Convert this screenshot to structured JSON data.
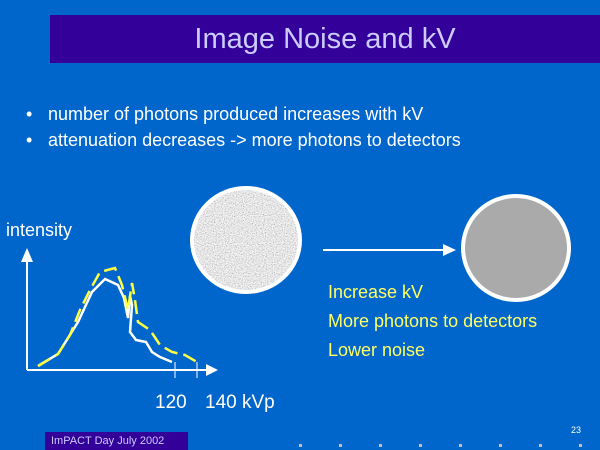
{
  "title": "Image Noise and kV",
  "bullets": [
    "number of photons produced increases with kV",
    "attenuation decreases -> more photons to detectors"
  ],
  "graph": {
    "ylabel": "intensity",
    "ticks": [
      "120",
      "140 kVp"
    ]
  },
  "notes": [
    "Increase  kV",
    "More photons to detectors",
    "Lower noise"
  ],
  "footer": "ImPACT Day July 2002",
  "page_number": "23",
  "colors": {
    "background": "#0066cc",
    "title_bar": "#330099",
    "title_text": "#ccccff",
    "highlight": "#ffff66"
  }
}
